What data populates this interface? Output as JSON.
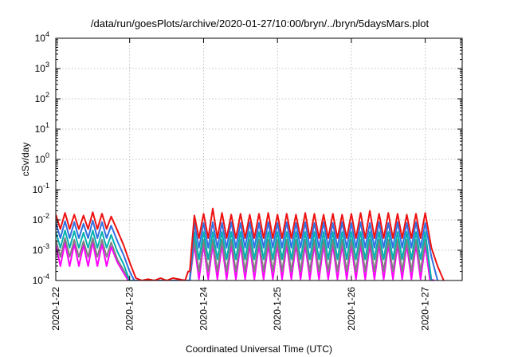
{
  "chart_data": {
    "type": "line",
    "title": "/data/run/goesPlots/archive/2020-01-27/10:00/bryn/../bryn/5daysMars.plot",
    "xlabel": "Coordinated Universal Time (UTC)",
    "ylabel": "cSv/day",
    "x_range": [
      "2020-01-22",
      "2020-01-27 12:00"
    ],
    "x_ticks": [
      "2020-1-22",
      "2020-1-23",
      "2020-1-24",
      "2020-1-25",
      "2020-1-26",
      "2020-1-27"
    ],
    "y_scale": "log",
    "y_range": [
      0.0001,
      10000
    ],
    "y_ticks": [
      {
        "mantissa": "10",
        "exp": "-4"
      },
      {
        "mantissa": "10",
        "exp": "-3"
      },
      {
        "mantissa": "10",
        "exp": "-2"
      },
      {
        "mantissa": "10",
        "exp": "-1"
      },
      {
        "mantissa": "10",
        "exp": "0"
      },
      {
        "mantissa": "10",
        "exp": "1"
      },
      {
        "mantissa": "10",
        "exp": "2"
      },
      {
        "mantissa": "10",
        "exp": "3"
      },
      {
        "mantissa": "10",
        "exp": "4"
      }
    ],
    "grid": true,
    "legend": "none",
    "series": [
      {
        "color": "#ff00ff",
        "x": [
          "2020-01-22 00:00",
          "2020-01-22 01:30",
          "2020-01-22 03:00",
          "2020-01-22 04:30",
          "2020-01-22 06:00",
          "2020-01-22 07:30",
          "2020-01-22 09:00",
          "2020-01-22 10:30",
          "2020-01-22 12:00",
          "2020-01-22 13:30",
          "2020-01-22 15:00",
          "2020-01-22 16:30",
          "2020-01-22 18:00",
          "2020-01-22 20:00",
          "2020-01-22 22:00",
          "2020-01-22 23:30",
          "2020-01-23 00:30",
          "2020-01-23 01:00",
          "2020-01-23 19:00",
          "2020-01-23 19:30",
          "2020-01-23 21:00",
          "2020-01-23 22:30",
          "2020-01-24 00:00",
          "2020-01-24 01:30",
          "2020-01-24 03:00",
          "2020-01-24 04:30",
          "2020-01-24 06:00",
          "2020-01-24 07:30",
          "2020-01-24 09:00",
          "2020-01-24 10:30",
          "2020-01-24 12:00",
          "2020-01-24 13:30",
          "2020-01-24 15:00",
          "2020-01-24 16:30",
          "2020-01-24 18:00",
          "2020-01-24 19:30",
          "2020-01-24 21:00",
          "2020-01-24 22:30",
          "2020-01-25 00:00",
          "2020-01-25 01:30",
          "2020-01-25 03:00",
          "2020-01-25 04:30",
          "2020-01-25 06:00",
          "2020-01-25 07:30",
          "2020-01-25 09:00",
          "2020-01-25 10:30",
          "2020-01-25 12:00",
          "2020-01-25 13:30",
          "2020-01-25 15:00",
          "2020-01-25 16:30",
          "2020-01-25 18:00",
          "2020-01-25 19:30",
          "2020-01-25 21:00",
          "2020-01-25 22:30",
          "2020-01-26 00:00",
          "2020-01-26 01:30",
          "2020-01-26 03:00",
          "2020-01-26 04:30",
          "2020-01-26 06:00",
          "2020-01-26 07:30",
          "2020-01-26 09:00",
          "2020-01-26 10:30",
          "2020-01-26 12:00",
          "2020-01-26 13:30",
          "2020-01-26 15:00",
          "2020-01-26 16:30",
          "2020-01-26 18:00",
          "2020-01-26 19:30",
          "2020-01-26 21:00",
          "2020-01-26 22:30",
          "2020-01-27 00:00",
          "2020-01-27 01:30",
          "2020-01-27 03:00"
        ],
        "y": [
          0.0015,
          0.0003,
          0.0018,
          0.0003,
          0.0016,
          0.0003,
          0.0015,
          0.0003,
          0.0019,
          0.0003,
          0.0016,
          0.0003,
          0.0013,
          0.0004,
          0.00018,
          0.0001,
          0.0001,
          0.0001,
          0.0001,
          0.0001,
          0.0015,
          0.00011,
          0.0015,
          0.00011,
          0.0015,
          0.00011,
          0.0015,
          0.00011,
          0.0015,
          0.00011,
          0.0015,
          0.00011,
          0.0015,
          0.00011,
          0.0015,
          0.00011,
          0.0015,
          0.00011,
          0.0015,
          0.00011,
          0.0015,
          0.00011,
          0.0015,
          0.00011,
          0.0015,
          0.00011,
          0.0015,
          0.00011,
          0.0015,
          0.00011,
          0.0015,
          0.00011,
          0.0015,
          0.00011,
          0.0015,
          0.00011,
          0.0015,
          0.00011,
          0.0015,
          0.00011,
          0.0015,
          0.00011,
          0.0015,
          0.00011,
          0.0015,
          0.00011,
          0.0015,
          0.00011,
          0.0015,
          0.00011,
          0.0015,
          0.00011,
          0.0001
        ]
      },
      {
        "color": "#808080",
        "x": [
          "2020-01-22 00:00",
          "2020-01-22 01:30",
          "2020-01-22 03:00",
          "2020-01-22 04:30",
          "2020-01-22 06:00",
          "2020-01-22 07:30",
          "2020-01-22 09:00",
          "2020-01-22 10:30",
          "2020-01-22 12:00",
          "2020-01-22 13:30",
          "2020-01-22 15:00",
          "2020-01-22 16:30",
          "2020-01-22 18:00",
          "2020-01-22 20:00",
          "2020-01-22 22:00",
          "2020-01-23 00:00",
          "2020-01-23 19:30",
          "2020-01-23 21:00",
          "2020-01-23 22:30",
          "2020-01-24 00:00",
          "2020-01-24 01:30",
          "2020-01-24 03:00",
          "2020-01-24 04:30",
          "2020-01-24 06:00",
          "2020-01-24 07:30",
          "2020-01-24 09:00",
          "2020-01-24 10:30",
          "2020-01-24 12:00",
          "2020-01-24 13:30",
          "2020-01-24 15:00",
          "2020-01-24 16:30",
          "2020-01-24 18:00",
          "2020-01-24 19:30",
          "2020-01-24 21:00",
          "2020-01-24 22:30",
          "2020-01-25 00:00",
          "2020-01-25 01:30",
          "2020-01-25 03:00",
          "2020-01-25 04:30",
          "2020-01-25 06:00",
          "2020-01-25 07:30",
          "2020-01-25 09:00",
          "2020-01-25 10:30",
          "2020-01-25 12:00",
          "2020-01-25 13:30",
          "2020-01-25 15:00",
          "2020-01-25 16:30",
          "2020-01-25 18:00",
          "2020-01-25 19:30",
          "2020-01-25 21:00",
          "2020-01-25 22:30",
          "2020-01-26 00:00",
          "2020-01-26 01:30",
          "2020-01-26 03:00",
          "2020-01-26 04:30",
          "2020-01-26 06:00",
          "2020-01-26 07:30",
          "2020-01-26 09:00",
          "2020-01-26 10:30",
          "2020-01-26 12:00",
          "2020-01-26 13:30",
          "2020-01-26 15:00",
          "2020-01-26 16:30",
          "2020-01-26 18:00",
          "2020-01-26 19:30",
          "2020-01-26 21:00",
          "2020-01-26 22:30",
          "2020-01-27 00:00",
          "2020-01-27 02:00"
        ],
        "y": [
          0.0022,
          0.0006,
          0.0025,
          0.0006,
          0.0022,
          0.0006,
          0.002,
          0.0006,
          0.0025,
          0.0006,
          0.0022,
          0.0006,
          0.0018,
          0.0005,
          0.00022,
          0.0001,
          0.0001,
          0.0022,
          0.0002,
          0.0022,
          0.0002,
          0.0022,
          0.0002,
          0.0022,
          0.0002,
          0.0022,
          0.0002,
          0.0022,
          0.0002,
          0.0022,
          0.0002,
          0.0022,
          0.0002,
          0.0022,
          0.0002,
          0.0022,
          0.0002,
          0.0022,
          0.0002,
          0.0022,
          0.0002,
          0.0022,
          0.0002,
          0.0022,
          0.0002,
          0.0022,
          0.0002,
          0.0022,
          0.0002,
          0.0022,
          0.0002,
          0.0022,
          0.0002,
          0.0022,
          0.0002,
          0.0022,
          0.0002,
          0.0022,
          0.0002,
          0.0022,
          0.0002,
          0.0022,
          0.0002,
          0.0022,
          0.0002,
          0.0022,
          0.0002,
          0.0022,
          0.0001
        ]
      },
      {
        "color": "#00b0b0",
        "x": [
          "2020-01-22 00:00",
          "2020-01-22 01:30",
          "2020-01-22 03:00",
          "2020-01-22 04:30",
          "2020-01-22 06:00",
          "2020-01-22 07:30",
          "2020-01-22 09:00",
          "2020-01-22 10:30",
          "2020-01-22 12:00",
          "2020-01-22 13:30",
          "2020-01-22 15:00",
          "2020-01-22 16:30",
          "2020-01-22 18:00",
          "2020-01-22 20:00",
          "2020-01-22 22:00",
          "2020-01-23 00:00",
          "2020-01-23 19:30",
          "2020-01-23 21:00",
          "2020-01-23 22:30",
          "2020-01-24 00:00",
          "2020-01-24 01:30",
          "2020-01-24 03:00",
          "2020-01-24 04:30",
          "2020-01-24 06:00",
          "2020-01-24 07:30",
          "2020-01-24 09:00",
          "2020-01-24 10:30",
          "2020-01-24 12:00",
          "2020-01-24 13:30",
          "2020-01-24 15:00",
          "2020-01-24 16:30",
          "2020-01-24 18:00",
          "2020-01-24 19:30",
          "2020-01-24 21:00",
          "2020-01-24 22:30",
          "2020-01-25 00:00",
          "2020-01-25 01:30",
          "2020-01-25 03:00",
          "2020-01-25 04:30",
          "2020-01-25 06:00",
          "2020-01-25 07:30",
          "2020-01-25 09:00",
          "2020-01-25 10:30",
          "2020-01-25 12:00",
          "2020-01-25 13:30",
          "2020-01-25 15:00",
          "2020-01-25 16:30",
          "2020-01-25 18:00",
          "2020-01-25 19:30",
          "2020-01-25 21:00",
          "2020-01-25 22:30",
          "2020-01-26 00:00",
          "2020-01-26 01:30",
          "2020-01-26 03:00",
          "2020-01-26 04:30",
          "2020-01-26 06:00",
          "2020-01-26 07:30",
          "2020-01-26 09:00",
          "2020-01-26 10:30",
          "2020-01-26 12:00",
          "2020-01-26 13:30",
          "2020-01-26 15:00",
          "2020-01-26 16:30",
          "2020-01-26 18:00",
          "2020-01-26 19:30",
          "2020-01-26 21:00",
          "2020-01-26 22:30",
          "2020-01-27 00:00",
          "2020-01-27 02:00"
        ],
        "y": [
          0.004,
          0.0012,
          0.0045,
          0.0012,
          0.0042,
          0.0012,
          0.0038,
          0.0012,
          0.0045,
          0.0012,
          0.004,
          0.0012,
          0.0032,
          0.0009,
          0.00035,
          0.0001,
          0.0001,
          0.004,
          0.0005,
          0.004,
          0.0005,
          0.004,
          0.0005,
          0.004,
          0.0005,
          0.004,
          0.0005,
          0.004,
          0.0005,
          0.004,
          0.0005,
          0.004,
          0.0005,
          0.004,
          0.0005,
          0.004,
          0.0005,
          0.004,
          0.0005,
          0.004,
          0.0005,
          0.004,
          0.0005,
          0.004,
          0.0005,
          0.004,
          0.0005,
          0.004,
          0.0005,
          0.004,
          0.0005,
          0.004,
          0.0005,
          0.004,
          0.0005,
          0.004,
          0.0005,
          0.004,
          0.0005,
          0.004,
          0.0005,
          0.004,
          0.0005,
          0.004,
          0.0005,
          0.004,
          0.0005,
          0.004,
          0.0001
        ]
      },
      {
        "color": "#3070e0",
        "x": [
          "2020-01-22 00:00",
          "2020-01-22 01:30",
          "2020-01-22 03:00",
          "2020-01-22 04:30",
          "2020-01-22 06:00",
          "2020-01-22 07:30",
          "2020-01-22 09:00",
          "2020-01-22 10:30",
          "2020-01-22 12:00",
          "2020-01-22 13:30",
          "2020-01-22 15:00",
          "2020-01-22 16:30",
          "2020-01-22 18:00",
          "2020-01-22 20:00",
          "2020-01-22 22:00",
          "2020-01-23 00:00",
          "2020-01-23 01:30",
          "2020-01-23 19:00",
          "2020-01-23 19:30",
          "2020-01-23 21:00",
          "2020-01-23 22:30",
          "2020-01-24 00:00",
          "2020-01-24 01:30",
          "2020-01-24 03:00",
          "2020-01-24 04:30",
          "2020-01-24 06:00",
          "2020-01-24 07:30",
          "2020-01-24 09:00",
          "2020-01-24 10:30",
          "2020-01-24 12:00",
          "2020-01-24 13:30",
          "2020-01-24 15:00",
          "2020-01-24 16:30",
          "2020-01-24 18:00",
          "2020-01-24 19:30",
          "2020-01-24 21:00",
          "2020-01-24 22:30",
          "2020-01-25 00:00",
          "2020-01-25 01:30",
          "2020-01-25 03:00",
          "2020-01-25 04:30",
          "2020-01-25 06:00",
          "2020-01-25 07:30",
          "2020-01-25 09:00",
          "2020-01-25 10:30",
          "2020-01-25 12:00",
          "2020-01-25 13:30",
          "2020-01-25 15:00",
          "2020-01-25 16:30",
          "2020-01-25 18:00",
          "2020-01-25 19:30",
          "2020-01-25 21:00",
          "2020-01-25 22:30",
          "2020-01-26 00:00",
          "2020-01-26 01:30",
          "2020-01-26 03:00",
          "2020-01-26 04:30",
          "2020-01-26 06:00",
          "2020-01-26 07:30",
          "2020-01-26 09:00",
          "2020-01-26 10:30",
          "2020-01-26 12:00",
          "2020-01-26 13:30",
          "2020-01-26 15:00",
          "2020-01-26 16:30",
          "2020-01-26 18:00",
          "2020-01-26 19:30",
          "2020-01-26 21:00",
          "2020-01-26 22:30",
          "2020-01-27 00:00",
          "2020-01-27 02:00",
          "2020-01-27 04:00"
        ],
        "y": [
          0.008,
          0.0025,
          0.009,
          0.0025,
          0.0085,
          0.0025,
          0.0075,
          0.0025,
          0.0095,
          0.0025,
          0.0085,
          0.0025,
          0.0065,
          0.002,
          0.0007,
          0.0002,
          0.0001,
          0.0001,
          0.0001,
          0.008,
          0.0012,
          0.008,
          0.0012,
          0.0085,
          0.0012,
          0.008,
          0.0012,
          0.0085,
          0.0012,
          0.008,
          0.0012,
          0.0085,
          0.0012,
          0.008,
          0.0012,
          0.0085,
          0.0012,
          0.008,
          0.0012,
          0.0085,
          0.0012,
          0.008,
          0.0012,
          0.0085,
          0.0012,
          0.008,
          0.0012,
          0.0085,
          0.0012,
          0.008,
          0.0012,
          0.0085,
          0.0012,
          0.008,
          0.0012,
          0.0085,
          0.0012,
          0.008,
          0.0012,
          0.0085,
          0.0012,
          0.008,
          0.0012,
          0.0085,
          0.0012,
          0.008,
          0.0012,
          0.0085,
          0.0012,
          0.008,
          0.0006,
          0.0001
        ]
      },
      {
        "color": "#ee1111",
        "x": [
          "2020-01-22 00:00",
          "2020-01-22 01:30",
          "2020-01-22 03:00",
          "2020-01-22 04:30",
          "2020-01-22 06:00",
          "2020-01-22 07:30",
          "2020-01-22 09:00",
          "2020-01-22 10:30",
          "2020-01-22 12:00",
          "2020-01-22 13:30",
          "2020-01-22 15:00",
          "2020-01-22 16:30",
          "2020-01-22 18:00",
          "2020-01-22 20:00",
          "2020-01-22 22:00",
          "2020-01-23 00:00",
          "2020-01-23 02:00",
          "2020-01-23 04:00",
          "2020-01-23 06:00",
          "2020-01-23 08:00",
          "2020-01-23 10:00",
          "2020-01-23 12:00",
          "2020-01-23 14:00",
          "2020-01-23 16:00",
          "2020-01-23 18:00",
          "2020-01-23 19:00",
          "2020-01-23 19:30",
          "2020-01-23 21:00",
          "2020-01-23 22:30",
          "2020-01-24 00:00",
          "2020-01-24 01:30",
          "2020-01-24 03:00",
          "2020-01-24 04:30",
          "2020-01-24 06:00",
          "2020-01-24 07:30",
          "2020-01-24 09:00",
          "2020-01-24 10:30",
          "2020-01-24 12:00",
          "2020-01-24 13:30",
          "2020-01-24 15:00",
          "2020-01-24 16:30",
          "2020-01-24 18:00",
          "2020-01-24 19:30",
          "2020-01-24 21:00",
          "2020-01-24 22:30",
          "2020-01-25 00:00",
          "2020-01-25 01:30",
          "2020-01-25 03:00",
          "2020-01-25 04:30",
          "2020-01-25 06:00",
          "2020-01-25 07:30",
          "2020-01-25 09:00",
          "2020-01-25 10:30",
          "2020-01-25 12:00",
          "2020-01-25 13:30",
          "2020-01-25 15:00",
          "2020-01-25 16:30",
          "2020-01-25 18:00",
          "2020-01-25 19:30",
          "2020-01-25 21:00",
          "2020-01-25 22:30",
          "2020-01-26 00:00",
          "2020-01-26 01:30",
          "2020-01-26 03:00",
          "2020-01-26 04:30",
          "2020-01-26 06:00",
          "2020-01-26 07:30",
          "2020-01-26 09:00",
          "2020-01-26 10:30",
          "2020-01-26 12:00",
          "2020-01-26 13:30",
          "2020-01-26 15:00",
          "2020-01-26 16:30",
          "2020-01-26 18:00",
          "2020-01-26 19:30",
          "2020-01-26 21:00",
          "2020-01-26 22:30",
          "2020-01-27 00:00",
          "2020-01-27 02:00",
          "2020-01-27 04:00",
          "2020-01-27 06:00"
        ],
        "y": [
          0.015,
          0.005,
          0.017,
          0.005,
          0.015,
          0.005,
          0.014,
          0.005,
          0.018,
          0.005,
          0.016,
          0.005,
          0.013,
          0.0045,
          0.0015,
          0.0004,
          0.00012,
          0.0001,
          0.00011,
          0.0001,
          0.00012,
          0.0001,
          0.00012,
          0.00011,
          0.0001,
          0.0002,
          0.0002,
          0.014,
          0.0025,
          0.016,
          0.0025,
          0.024,
          0.0025,
          0.017,
          0.0025,
          0.015,
          0.0025,
          0.016,
          0.0025,
          0.015,
          0.0025,
          0.016,
          0.0025,
          0.017,
          0.0025,
          0.015,
          0.0025,
          0.016,
          0.0025,
          0.015,
          0.0025,
          0.017,
          0.0025,
          0.016,
          0.0025,
          0.015,
          0.0025,
          0.016,
          0.0025,
          0.015,
          0.0025,
          0.016,
          0.0025,
          0.017,
          0.0025,
          0.02,
          0.0025,
          0.016,
          0.0025,
          0.017,
          0.0025,
          0.016,
          0.0025,
          0.015,
          0.0025,
          0.016,
          0.0025,
          0.017,
          0.0012,
          0.0003,
          0.0001
        ]
      }
    ]
  }
}
